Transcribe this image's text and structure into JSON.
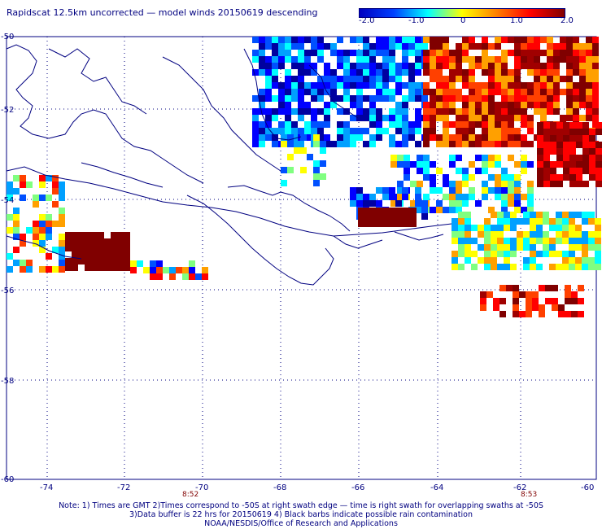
{
  "title": "Rapidscat 12.5km uncorrected — model winds 20150619 descending",
  "colorbar": {
    "ticks": [
      "-2.0",
      "-1.0",
      "0",
      "1.0",
      "2.0"
    ],
    "stops": [
      "#0000c0",
      "#0040ff",
      "#00ffff",
      "#ffff00",
      "#ff8000",
      "#ff0000",
      "#800000"
    ]
  },
  "map": {
    "lat_labels": [
      "-50",
      "-52",
      "-54",
      "-56",
      "-58",
      "-60"
    ],
    "lon_labels": [
      "-74",
      "-72",
      "-70",
      "-68",
      "-66",
      "-64",
      "-62",
      "-60"
    ],
    "time_labels": [
      "8:52",
      "8:53"
    ],
    "land_color": "#000080",
    "grid_color": "#000080"
  },
  "notes": [
    "Note: 1) Times are GMT 2)Times correspond to -50S at right swath edge — time is right swath for overlapping swaths at -50S",
    "3)Data buffer is 22 hrs for 20150619 4) Black barbs indicate possible rain contamination",
    "NOAA/NESDIS/Office of Research and Applications"
  ]
}
